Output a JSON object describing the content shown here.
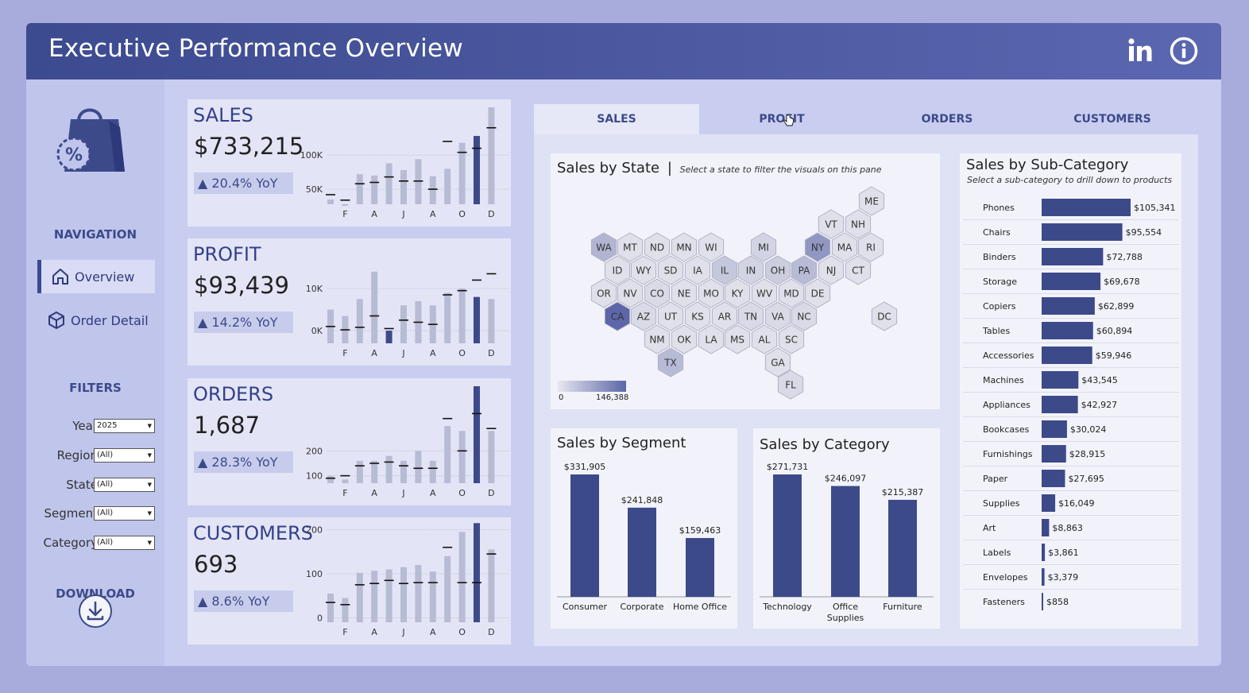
{
  "header": {
    "title": "Executive Performance Overview",
    "linkedin_icon": "linkedin-icon",
    "info_icon": "info-icon"
  },
  "sidebar": {
    "logo_icon": "shopping-bag-percent-icon",
    "navigation_heading": "NAVIGATION",
    "nav_items": [
      {
        "label": "Overview",
        "icon": "home-icon",
        "active": true
      },
      {
        "label": "Order Detail",
        "icon": "box-icon",
        "active": false
      }
    ],
    "filters_heading": "FILTERS",
    "filters": [
      {
        "label": "Year",
        "value": "2025"
      },
      {
        "label": "Region",
        "value": "(All)"
      },
      {
        "label": "State",
        "value": "(All)"
      },
      {
        "label": "Segment",
        "value": "(All)"
      },
      {
        "label": "Category",
        "value": "(All)"
      }
    ],
    "download_heading": "DOWNLOAD",
    "download_icon": "download-icon"
  },
  "kpis": [
    {
      "name": "SALES",
      "value": "$733,215",
      "yoy": "▲ 20.4% YoY",
      "chart": {
        "ticks": [
          "100K",
          "50K"
        ],
        "tick_values": [
          100,
          50
        ],
        "min": 28,
        "max": 170,
        "months": [
          "F",
          "A",
          "J",
          "A",
          "O",
          "D"
        ],
        "current": [
          35,
          28,
          72,
          70,
          88,
          78,
          94,
          69,
          80,
          118,
          128,
          170
        ],
        "previous": [
          42,
          34,
          58,
          60,
          68,
          62,
          62,
          50,
          120,
          104,
          110,
          140
        ]
      }
    },
    {
      "name": "PROFIT",
      "value": "$93,439",
      "yoy": "▲ 14.2% YoY",
      "chart": {
        "ticks": [
          "10K",
          "0K"
        ],
        "tick_values": [
          10,
          0
        ],
        "min": -3,
        "max": 20,
        "months": [
          "F",
          "A",
          "J",
          "A",
          "O",
          "D"
        ],
        "current": [
          5.0,
          3.5,
          7.5,
          14.0,
          0.0,
          6.0,
          7.0,
          6.0,
          9.0,
          10.0,
          8.0,
          7.5
        ],
        "previous": [
          1.0,
          0.2,
          0.8,
          3.5,
          0.5,
          2.5,
          2.0,
          1.5,
          8.5,
          9.5,
          12.0,
          13.5
        ]
      }
    },
    {
      "name": "ORDERS",
      "value": "1,687",
      "yoy": "▲ 28.3% YoY",
      "chart": {
        "ticks": [
          "200",
          "100"
        ],
        "tick_values": [
          200,
          100
        ],
        "min": 70,
        "max": 460,
        "months": [
          "F",
          "A",
          "J",
          "A",
          "O",
          "D"
        ],
        "current": [
          100,
          85,
          160,
          160,
          180,
          160,
          200,
          160,
          300,
          280,
          460,
          280
        ],
        "previous": [
          90,
          100,
          140,
          150,
          155,
          140,
          130,
          130,
          330,
          200,
          350,
          290
        ]
      }
    },
    {
      "name": "CUSTOMERS",
      "value": "693",
      "yoy": "▲ 8.6% YoY",
      "chart": {
        "ticks": [
          "200",
          "100",
          "0"
        ],
        "tick_values": [
          200,
          100,
          0
        ],
        "min": -10,
        "max": 210,
        "months": [
          "F",
          "A",
          "J",
          "A",
          "O",
          "D"
        ],
        "current": [
          55,
          45,
          102,
          107,
          110,
          115,
          120,
          105,
          140,
          195,
          215,
          155
        ],
        "previous": [
          35,
          30,
          75,
          78,
          85,
          78,
          80,
          80,
          160,
          80,
          80,
          145
        ]
      }
    }
  ],
  "main": {
    "tabs": [
      "SALES",
      "PROFIT",
      "ORDERS",
      "CUSTOMERS"
    ],
    "active_tab": 0,
    "state_map": {
      "title": "Sales by State",
      "subtitle": "Select a state to filter the visuals on this pane",
      "legend_min": "0",
      "legend_max": "146,388",
      "states": [
        {
          "s": "ME",
          "v": 0
        },
        {
          "s": "VT",
          "v": 0
        },
        {
          "s": "NH",
          "v": 0
        },
        {
          "s": "WA",
          "v": 0.35
        },
        {
          "s": "MT",
          "v": 0
        },
        {
          "s": "ND",
          "v": 0
        },
        {
          "s": "MN",
          "v": 0
        },
        {
          "s": "WI",
          "v": 0
        },
        {
          "s": "MI",
          "v": 0.1
        },
        {
          "s": "NY",
          "v": 0.6
        },
        {
          "s": "MA",
          "v": 0
        },
        {
          "s": "RI",
          "v": 0
        },
        {
          "s": "ID",
          "v": 0
        },
        {
          "s": "WY",
          "v": 0
        },
        {
          "s": "SD",
          "v": 0
        },
        {
          "s": "IA",
          "v": 0
        },
        {
          "s": "IL",
          "v": 0.2
        },
        {
          "s": "IN",
          "v": 0.1
        },
        {
          "s": "OH",
          "v": 0.15
        },
        {
          "s": "PA",
          "v": 0.3
        },
        {
          "s": "NJ",
          "v": 0
        },
        {
          "s": "CT",
          "v": 0
        },
        {
          "s": "OR",
          "v": 0
        },
        {
          "s": "NV",
          "v": 0
        },
        {
          "s": "CO",
          "v": 0.05
        },
        {
          "s": "NE",
          "v": 0
        },
        {
          "s": "MO",
          "v": 0
        },
        {
          "s": "KY",
          "v": 0
        },
        {
          "s": "WV",
          "v": 0
        },
        {
          "s": "MD",
          "v": 0
        },
        {
          "s": "DE",
          "v": 0
        },
        {
          "s": "CA",
          "v": 1
        },
        {
          "s": "AZ",
          "v": 0.05
        },
        {
          "s": "UT",
          "v": 0
        },
        {
          "s": "KS",
          "v": 0
        },
        {
          "s": "AR",
          "v": 0
        },
        {
          "s": "TN",
          "v": 0.05
        },
        {
          "s": "VA",
          "v": 0.05
        },
        {
          "s": "NC",
          "v": 0.05
        },
        {
          "s": "DC",
          "v": 0
        },
        {
          "s": "NM",
          "v": 0
        },
        {
          "s": "OK",
          "v": 0
        },
        {
          "s": "LA",
          "v": 0
        },
        {
          "s": "MS",
          "v": 0
        },
        {
          "s": "AL",
          "v": 0
        },
        {
          "s": "SC",
          "v": 0
        },
        {
          "s": "TX",
          "v": 0.3
        },
        {
          "s": "GA",
          "v": 0
        },
        {
          "s": "FL",
          "v": 0.05
        }
      ]
    },
    "segment": {
      "title": "Sales by Segment",
      "chart_data": {
        "type": "bar",
        "categories": [
          "Consumer",
          "Corporate",
          "Home Office"
        ],
        "values": [
          331905,
          241848,
          159463
        ],
        "labels": [
          "$331,905",
          "$241,848",
          "$159,463"
        ]
      }
    },
    "category": {
      "title": "Sales by Category",
      "chart_data": {
        "type": "bar",
        "categories": [
          "Technology",
          "Office Supplies",
          "Furniture"
        ],
        "values": [
          271731,
          246097,
          215387
        ],
        "labels": [
          "$271,731",
          "$246,097",
          "$215,387"
        ]
      }
    },
    "subcategory": {
      "title": "Sales by Sub-Category",
      "subtitle": "Select a sub-category to drill down to products",
      "chart_data": {
        "type": "bar",
        "categories": [
          "Phones",
          "Chairs",
          "Binders",
          "Storage",
          "Copiers",
          "Tables",
          "Accessories",
          "Machines",
          "Appliances",
          "Bookcases",
          "Furnishings",
          "Paper",
          "Supplies",
          "Art",
          "Labels",
          "Envelopes",
          "Fasteners"
        ],
        "values": [
          105341,
          95554,
          72788,
          69678,
          62899,
          60894,
          59946,
          43545,
          42927,
          30024,
          28915,
          27695,
          16049,
          8863,
          3861,
          3379,
          858
        ],
        "labels": [
          "$105,341",
          "$95,554",
          "$72,788",
          "$69,678",
          "$62,899",
          "$60,894",
          "$59,946",
          "$43,545",
          "$42,927",
          "$30,024",
          "$28,915",
          "$27,695",
          "$16,049",
          "$8,863",
          "$3,861",
          "$3,379",
          "$858"
        ]
      }
    }
  },
  "colors": {
    "accent": "#3c4a8f",
    "bar": "#3d4a8a",
    "prior_bar": "#b7bbd4",
    "hex_empty": "#dfe0e9"
  }
}
